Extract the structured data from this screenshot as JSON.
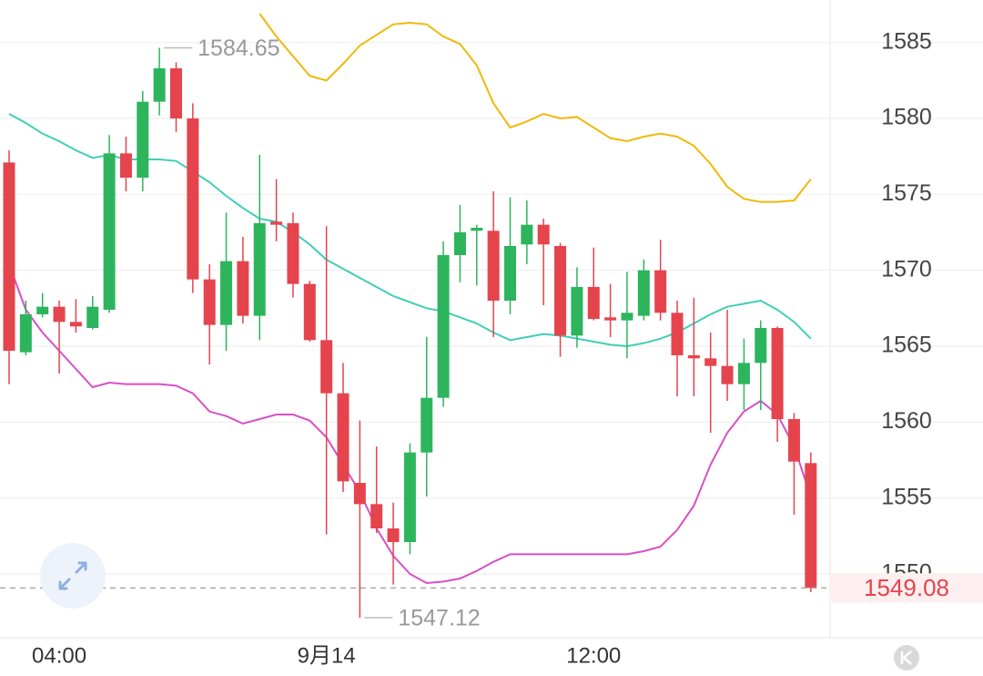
{
  "chart_data": {
    "type": "candlestick",
    "categories": [
      null,
      null,
      null,
      "04:00",
      null,
      null,
      null,
      null,
      null,
      null,
      null,
      null,
      null,
      null,
      null,
      null,
      null,
      null,
      null,
      "9月14",
      null,
      null,
      null,
      null,
      null,
      null,
      null,
      null,
      null,
      null,
      null,
      null,
      null,
      null,
      null,
      "12:00",
      null,
      null,
      null,
      null,
      null,
      null,
      null,
      null,
      null,
      null,
      null,
      null,
      null
    ],
    "open": [
      1577.1,
      1564.6,
      1567.1,
      1567.6,
      1566.6,
      1566.2,
      1567.4,
      1577.7,
      1576.1,
      1581.1,
      1583.3,
      1580.0,
      1569.4,
      1566.4,
      1570.6,
      1567.0,
      1573.2,
      1573.1,
      1569.1,
      1565.4,
      1561.9,
      1556.0,
      1554.6,
      1553.0,
      1552.1,
      1558.0,
      1561.6,
      1571.0,
      1572.6,
      1572.6,
      1568.0,
      1571.7,
      1573.0,
      1571.6,
      1565.7,
      1568.9,
      1566.9,
      1566.7,
      1567.0,
      1570.0,
      1567.2,
      1564.4,
      1564.2,
      1563.7,
      1562.5,
      1563.9,
      1566.2,
      1560.2,
      1557.3
    ],
    "high": [
      1577.9,
      1568.0,
      1568.5,
      1568.0,
      1568.1,
      1568.3,
      1578.9,
      1578.8,
      1581.8,
      1584.65,
      1583.7,
      1581.0,
      1570.4,
      1573.8,
      1572.2,
      1577.6,
      1576.0,
      1573.8,
      1569.3,
      1572.9,
      1563.9,
      1560.1,
      1558.4,
      1554.7,
      1558.6,
      1565.6,
      1571.9,
      1574.3,
      1573.0,
      1575.2,
      1574.8,
      1574.6,
      1573.4,
      1571.8,
      1570.2,
      1571.5,
      1569.1,
      1569.9,
      1570.7,
      1572.0,
      1568.0,
      1568.2,
      1565.9,
      1567.4,
      1565.5,
      1566.7,
      1566.3,
      1560.6,
      1558.0
    ],
    "low": [
      1562.5,
      1564.4,
      1566.9,
      1563.2,
      1565.9,
      1566.1,
      1567.2,
      1575.2,
      1575.2,
      1580.2,
      1579.1,
      1568.5,
      1563.8,
      1564.7,
      1566.5,
      1565.4,
      1571.9,
      1568.2,
      1565.3,
      1552.6,
      1555.4,
      1547.12,
      1552.7,
      1549.3,
      1551.3,
      1555.1,
      1561.0,
      1569.2,
      1569.0,
      1565.6,
      1567.1,
      1570.4,
      1567.7,
      1564.3,
      1564.9,
      1566.7,
      1565.6,
      1564.2,
      1566.7,
      1566.7,
      1561.7,
      1561.7,
      1559.3,
      1561.4,
      1560.8,
      1560.8,
      1558.7,
      1553.9,
      1548.8
    ],
    "close": [
      1564.7,
      1567.1,
      1567.6,
      1566.6,
      1566.3,
      1567.6,
      1577.7,
      1576.1,
      1581.1,
      1583.3,
      1580.0,
      1569.4,
      1566.4,
      1570.6,
      1567.0,
      1573.1,
      1573.0,
      1569.1,
      1565.4,
      1561.9,
      1556.1,
      1554.6,
      1553.0,
      1552.1,
      1558.0,
      1561.6,
      1571.0,
      1572.5,
      1572.8,
      1568.0,
      1571.6,
      1573.0,
      1571.7,
      1565.7,
      1568.9,
      1566.8,
      1566.7,
      1567.2,
      1570.0,
      1567.2,
      1564.4,
      1564.2,
      1563.7,
      1562.5,
      1563.9,
      1566.2,
      1560.2,
      1557.4,
      1549.08
    ],
    "up_color": "#2db55d",
    "down_color": "#e5444d",
    "bands": [
      {
        "color": "#f0b90b",
        "values": [
          null,
          null,
          null,
          null,
          null,
          null,
          null,
          null,
          null,
          null,
          null,
          null,
          null,
          null,
          null,
          1586.9,
          1585.4,
          1584.1,
          1582.8,
          1582.5,
          1583.6,
          1584.8,
          1585.5,
          1586.2,
          1586.3,
          1586.2,
          1585.4,
          1584.9,
          1583.5,
          1581.0,
          1579.4,
          1579.8,
          1580.3,
          1580.0,
          1580.1,
          1579.4,
          1578.7,
          1578.5,
          1578.8,
          1579.0,
          1578.8,
          1578.2,
          1577.0,
          1575.5,
          1574.7,
          1574.5,
          1574.5,
          1574.6,
          1576.0
        ]
      },
      {
        "color": "#3ecfb8",
        "values": [
          1580.3,
          1579.7,
          1579.0,
          1578.5,
          1577.9,
          1577.4,
          1577.6,
          1577.3,
          1577.3,
          1577.3,
          1577.2,
          1576.5,
          1575.8,
          1574.9,
          1574.1,
          1573.4,
          1573.2,
          1572.5,
          1571.7,
          1570.7,
          1570.1,
          1569.5,
          1568.9,
          1568.3,
          1567.9,
          1567.5,
          1567.3,
          1566.9,
          1566.5,
          1565.9,
          1565.4,
          1565.6,
          1565.8,
          1565.7,
          1565.5,
          1565.3,
          1565.1,
          1565.0,
          1565.2,
          1565.5,
          1565.9,
          1566.5,
          1567.1,
          1567.6,
          1567.8,
          1568.0,
          1567.4,
          1566.6,
          1565.5
        ]
      },
      {
        "color": "#d94fc4",
        "values": [
          1570.4,
          1567.4,
          1565.9,
          1564.7,
          1563.5,
          1562.3,
          1562.6,
          1562.5,
          1562.5,
          1562.5,
          1562.4,
          1561.9,
          1560.7,
          1560.4,
          1559.9,
          1560.2,
          1560.5,
          1560.5,
          1560.1,
          1559.0,
          1557.2,
          1555.4,
          1553.0,
          1551.2,
          1550.0,
          1549.4,
          1549.5,
          1549.7,
          1550.2,
          1550.8,
          1551.3,
          1551.3,
          1551.3,
          1551.3,
          1551.3,
          1551.3,
          1551.3,
          1551.3,
          1551.5,
          1551.8,
          1552.9,
          1554.5,
          1557.2,
          1559.3,
          1560.7,
          1561.4,
          1560.5,
          1558.4,
          1555.1
        ]
      }
    ],
    "ylim": [
      1545.8,
      1587.8
    ],
    "yticks": [
      1550,
      1555,
      1560,
      1565,
      1570,
      1575,
      1580,
      1585
    ],
    "grid": true
  }
}
